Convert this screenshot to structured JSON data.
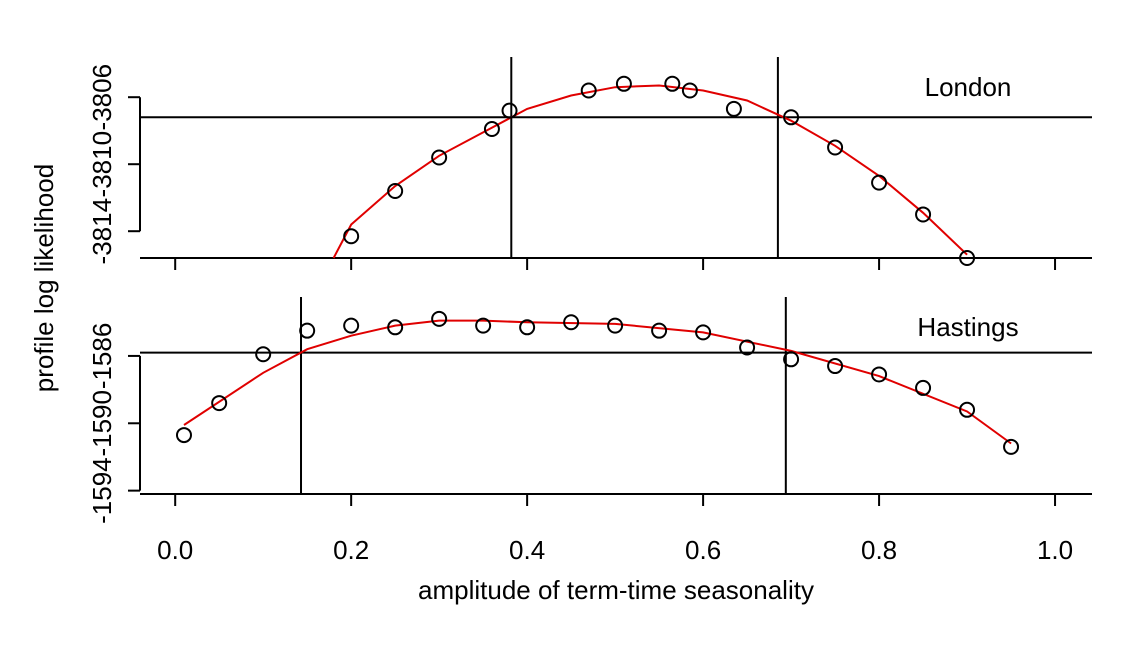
{
  "chart_data": [
    {
      "type": "scatter",
      "label": "London",
      "ylabel": "profile log likelihood",
      "x": [
        0.2,
        0.25,
        0.3,
        0.36,
        0.38,
        0.47,
        0.51,
        0.565,
        0.585,
        0.635,
        0.7,
        0.75,
        0.8,
        0.85,
        0.9
      ],
      "values": [
        -3814.3,
        -3811.6,
        -3809.6,
        -3807.9,
        -3806.8,
        -3805.6,
        -3805.2,
        -3805.2,
        -3805.6,
        -3806.7,
        -3807.2,
        -3809.0,
        -3811.1,
        -3813.0,
        -3815.6
      ],
      "fit": {
        "color": "#e00000",
        "x": [
          0.18,
          0.2,
          0.25,
          0.3,
          0.35,
          0.4,
          0.45,
          0.5,
          0.55,
          0.6,
          0.65,
          0.7,
          0.75,
          0.8,
          0.85,
          0.9
        ],
        "values": [
          -3815.6,
          -3813.6,
          -3811.3,
          -3809.5,
          -3808.1,
          -3806.7,
          -3805.9,
          -3805.4,
          -3805.3,
          -3805.6,
          -3806.2,
          -3807.4,
          -3808.9,
          -3810.7,
          -3812.9,
          -3815.4
        ]
      },
      "ci_level": -3807.2,
      "ci_bounds": [
        0.382,
        0.685
      ],
      "xlim": [
        -0.04,
        1.042
      ],
      "xticks": [
        {
          "value": 0,
          "label": "0.0"
        },
        0.2,
        0.4,
        0.6,
        0.8,
        {
          "value": 1,
          "label": "1.0"
        }
      ],
      "ylim": [
        -3815.6,
        -3803.6
      ],
      "yticks": [
        -3814,
        -3810,
        -3806
      ]
    },
    {
      "type": "scatter",
      "label": "Hastings",
      "xlabel": "amplitude of term-time seasonality",
      "x": [
        0.01,
        0.05,
        0.1,
        0.15,
        0.2,
        0.25,
        0.3,
        0.35,
        0.4,
        0.45,
        0.5,
        0.55,
        0.6,
        0.65,
        0.7,
        0.75,
        0.8,
        0.85,
        0.9,
        0.95
      ],
      "values": [
        -1590.7,
        -1588.8,
        -1585.9,
        -1584.5,
        -1584.2,
        -1584.3,
        -1583.8,
        -1584.2,
        -1584.3,
        -1584.0,
        -1584.2,
        -1584.5,
        -1584.6,
        -1585.5,
        -1586.2,
        -1586.6,
        -1587.1,
        -1587.9,
        -1589.2,
        -1591.4
      ],
      "fit": {
        "color": "#e00000",
        "x": [
          0.01,
          0.1,
          0.15,
          0.2,
          0.25,
          0.3,
          0.35,
          0.4,
          0.5,
          0.6,
          0.7,
          0.8,
          0.9,
          0.95
        ],
        "values": [
          -1590.1,
          -1587.0,
          -1585.6,
          -1584.8,
          -1584.2,
          -1583.9,
          -1583.9,
          -1584.0,
          -1584.1,
          -1584.6,
          -1585.7,
          -1587.2,
          -1589.3,
          -1591.2
        ]
      },
      "ci_level": -1585.8,
      "ci_bounds": [
        0.143,
        0.694
      ],
      "xlim": [
        -0.04,
        1.042
      ],
      "xticks": [
        {
          "value": 0,
          "label": "0.0"
        },
        0.2,
        0.4,
        0.6,
        0.8,
        {
          "value": 1,
          "label": "1.0"
        }
      ],
      "ylim": [
        -1594.2,
        -1582.5
      ],
      "yticks": [
        -1594,
        -1590,
        -1586
      ]
    }
  ]
}
